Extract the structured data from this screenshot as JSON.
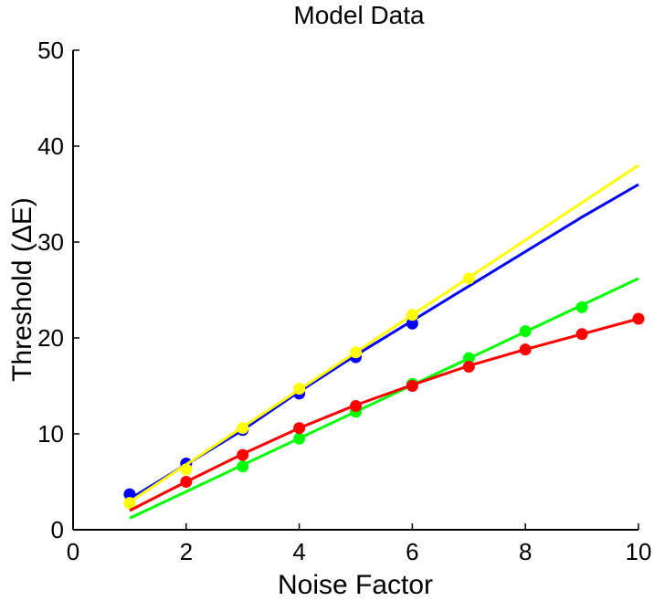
{
  "chart_data": {
    "type": "scatter",
    "title": "Model Data",
    "xlabel": "Noise Factor",
    "ylabel": "Threshold (ΔE)",
    "xlim": [
      0,
      10
    ],
    "ylim": [
      0,
      50
    ],
    "xticks": [
      0,
      2,
      4,
      6,
      8,
      10
    ],
    "yticks": [
      0,
      10,
      20,
      30,
      40,
      50
    ],
    "grid": false,
    "series": [
      {
        "color": "#0000ff",
        "points": {
          "x": [
            1,
            2,
            3,
            4,
            5,
            6
          ],
          "y": [
            3.7,
            6.9,
            10.4,
            14.2,
            18.0,
            21.5
          ]
        },
        "fit": {
          "x": [
            1,
            2,
            3,
            4,
            5,
            6,
            7,
            8,
            9,
            10
          ],
          "y": [
            3.2,
            6.8,
            10.4,
            14.4,
            18.2,
            21.8,
            25.4,
            29.0,
            32.6,
            36.0
          ]
        }
      },
      {
        "color": "#ffff00",
        "points": {
          "x": [
            1,
            2,
            3,
            4,
            5,
            6,
            7
          ],
          "y": [
            2.8,
            6.3,
            10.6,
            14.7,
            18.5,
            22.4,
            26.2
          ]
        },
        "fit": {
          "x": [
            1,
            10
          ],
          "y": [
            2.9,
            38.0
          ]
        }
      },
      {
        "color": "#00ff00",
        "points": {
          "x": [
            3,
            4,
            5,
            6,
            7,
            8,
            9
          ],
          "y": [
            6.6,
            9.5,
            12.3,
            15.2,
            17.9,
            20.7,
            23.2
          ]
        },
        "fit": {
          "x": [
            1,
            10
          ],
          "y": [
            1.2,
            26.2
          ]
        }
      },
      {
        "color": "#ff0000",
        "points": {
          "x": [
            2,
            3,
            4,
            5,
            6,
            7,
            8,
            9,
            10
          ],
          "y": [
            5.0,
            7.8,
            10.6,
            12.9,
            15.0,
            17.0,
            18.8,
            20.4,
            22.0
          ]
        },
        "fit": {
          "x": [
            1,
            2,
            3,
            4,
            5,
            6,
            7,
            8,
            9,
            10
          ],
          "y": [
            2.0,
            5.0,
            7.9,
            10.6,
            13.0,
            15.1,
            17.1,
            18.8,
            20.4,
            22.0
          ]
        }
      }
    ]
  }
}
